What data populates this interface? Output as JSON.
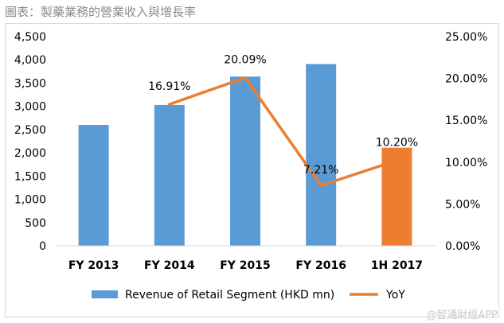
{
  "page_title": "圖表：製藥業務的營業收入與增長率",
  "watermark": "@智通財經APP",
  "chart_data": {
    "type": "bar",
    "categories": [
      "FY 2013",
      "FY 2014",
      "FY 2015",
      "FY 2016",
      "1H 2017"
    ],
    "series": [
      {
        "name": "Revenue of Retail Segment (HKD mn)",
        "kind": "bar",
        "axis": "left",
        "values": [
          2600,
          3030,
          3640,
          3910,
          2110
        ],
        "color": "#5b9bd5",
        "highlight_color": "#ed7d31",
        "highlight_index": 4
      },
      {
        "name": "YoY",
        "kind": "line",
        "axis": "right",
        "values": [
          null,
          16.91,
          20.09,
          7.21,
          10.2
        ],
        "labels": [
          "",
          "16.91%",
          "20.09%",
          "7.21%",
          "10.20%"
        ],
        "color": "#ed7d31"
      }
    ],
    "y_left": {
      "min": 0,
      "max": 4500,
      "step": 500,
      "tick_labels": [
        "0",
        "500",
        "1,000",
        "1,500",
        "2,000",
        "2,500",
        "3,000",
        "3,500",
        "4,000",
        "4,500"
      ]
    },
    "y_right": {
      "min": 0,
      "max": 25,
      "step": 5,
      "tick_labels": [
        "0.00%",
        "5.00%",
        "10.00%",
        "15.00%",
        "20.00%",
        "25.00%"
      ]
    },
    "grid": false,
    "legend": "bottom"
  }
}
